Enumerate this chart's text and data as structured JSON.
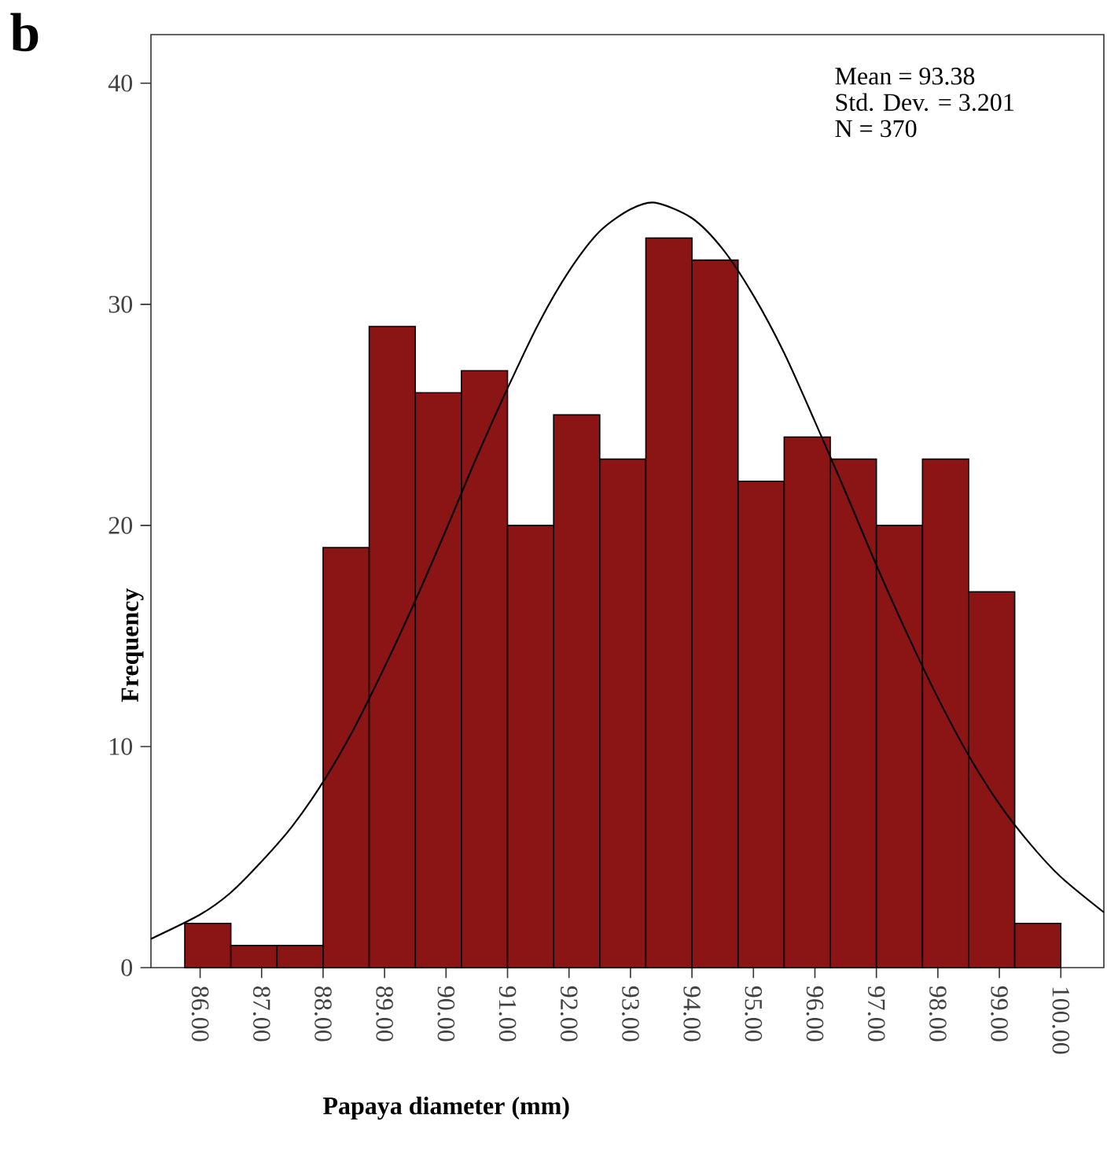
{
  "chart_data": {
    "type": "histogram",
    "title": "b",
    "xlabel": "Papaya diameter (mm)",
    "ylabel": "Frequency",
    "annotations": [
      "Mean = 93.38",
      "Std. Dev. = 3.201",
      "N = 370"
    ],
    "bins": [
      85.75,
      86.5,
      87.25,
      88,
      88.75,
      89.5,
      90.25,
      91,
      91.75,
      92.5,
      93.25,
      94,
      94.75,
      95.5,
      96.25,
      97,
      97.75,
      98.5,
      99.25,
      100
    ],
    "values": [
      2,
      1,
      1,
      19,
      29,
      26,
      27,
      20,
      25,
      23,
      33,
      32,
      22,
      24,
      23,
      20,
      23,
      17,
      2
    ],
    "color": "#8b1414",
    "series": [
      {
        "type": "line",
        "color": "#000000",
        "x": [
          85.2,
          86,
          86.5,
          87,
          87.5,
          88,
          88.5,
          89,
          89.5,
          90,
          90.5,
          91,
          91.5,
          92,
          92.5,
          93,
          93.4,
          94,
          94.5,
          95,
          95.5,
          96,
          96.5,
          97,
          97.5,
          98,
          98.5,
          99,
          99.5,
          100,
          100.7
        ],
        "values": [
          1.3,
          2.4,
          3.4,
          4.8,
          6.4,
          8.4,
          10.8,
          13.6,
          16.6,
          19.8,
          23.1,
          26.2,
          29.1,
          31.5,
          33.3,
          34.3,
          34.6,
          33.9,
          32.5,
          30.4,
          27.8,
          24.7,
          21.5,
          18.2,
          15.1,
          12.2,
          9.6,
          7.4,
          5.6,
          4.1,
          2.5
        ]
      }
    ],
    "xlim": [
      85.2,
      100.7
    ],
    "ylim": [
      0,
      42.2
    ],
    "xticks": [
      {
        "value": 86,
        "label": "86.00"
      },
      {
        "value": 87,
        "label": "87.00"
      },
      {
        "value": 88,
        "label": "88.00"
      },
      {
        "value": 89,
        "label": "89.00"
      },
      {
        "value": 90,
        "label": "90.00"
      },
      {
        "value": 91,
        "label": "91.00"
      },
      {
        "value": 92,
        "label": "92.00"
      },
      {
        "value": 93,
        "label": "93.00"
      },
      {
        "value": 94,
        "label": "94.00"
      },
      {
        "value": 95,
        "label": "95.00"
      },
      {
        "value": 96,
        "label": "96.00"
      },
      {
        "value": 97,
        "label": "97.00"
      },
      {
        "value": 98,
        "label": "98.00"
      },
      {
        "value": 99,
        "label": "99.00"
      },
      {
        "value": 100,
        "label": "100.00"
      }
    ],
    "yticks": [
      0,
      10,
      20,
      30,
      40
    ]
  }
}
